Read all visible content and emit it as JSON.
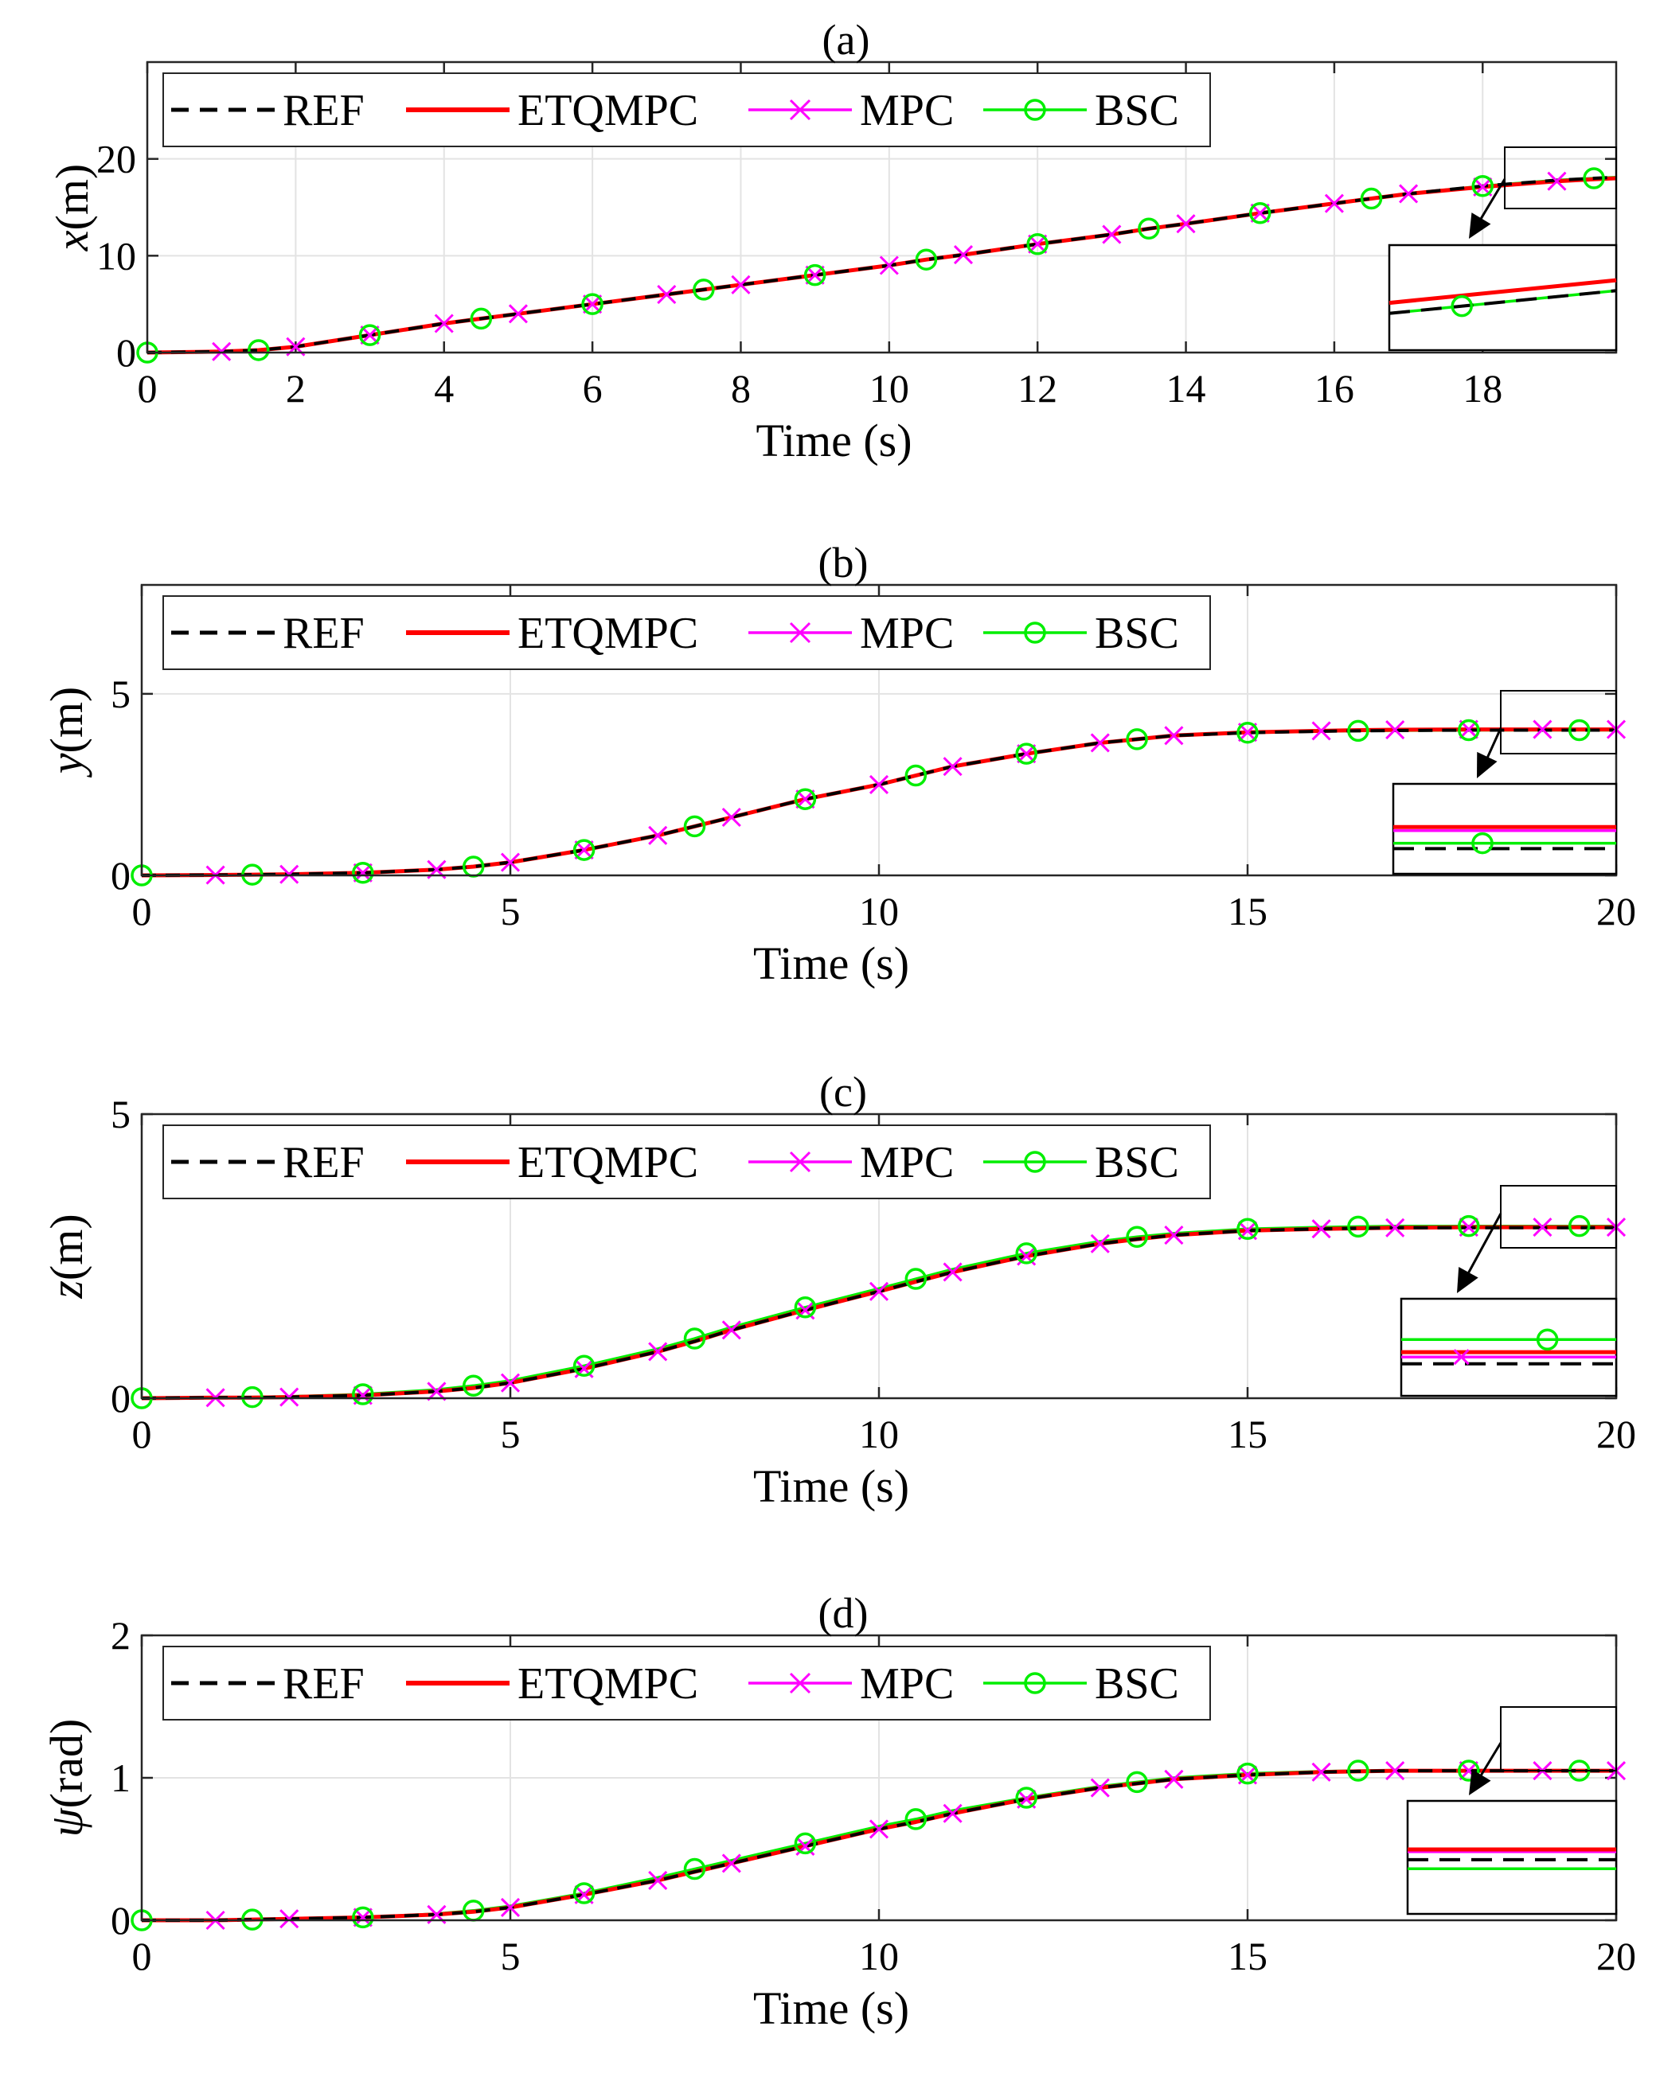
{
  "colors": {
    "REF": "#000000",
    "ETQMPC": "#ff0000",
    "MPC": "#ff00ff",
    "BSC": "#00ee00"
  },
  "legend": [
    "REF",
    "ETQMPC",
    "MPC",
    "BSC"
  ],
  "chart_data": [
    {
      "type": "line",
      "title": "(a)",
      "xlabel": "Time (s)",
      "ylabel_var": "x",
      "ylabel_unit": "(m)",
      "xlim": [
        0,
        19.8
      ],
      "ylim": [
        0,
        30
      ],
      "xticks": [
        0,
        2,
        4,
        6,
        8,
        10,
        12,
        14,
        16,
        18
      ],
      "yticks": [
        0,
        10,
        20
      ],
      "x": [
        0,
        1,
        1.5,
        2,
        3,
        4,
        4.5,
        5,
        6,
        7,
        7.5,
        8,
        9,
        10,
        10.5,
        11,
        12,
        13,
        13.5,
        14,
        15,
        16,
        16.5,
        17,
        18,
        19,
        19.5,
        19.8
      ],
      "series": [
        {
          "name": "REF",
          "values": [
            0,
            0.1,
            0.25,
            0.6,
            1.8,
            3.0,
            3.5,
            4.0,
            5.0,
            6.0,
            6.5,
            7.0,
            8.0,
            9.0,
            9.6,
            10.1,
            11.2,
            12.2,
            12.8,
            13.3,
            14.4,
            15.4,
            15.9,
            16.4,
            17.2,
            17.8,
            18.0,
            18.1
          ]
        },
        {
          "name": "ETQMPC",
          "values": [
            0,
            0.1,
            0.25,
            0.6,
            1.8,
            3.0,
            3.5,
            4.0,
            5.0,
            6.0,
            6.5,
            7.0,
            8.0,
            9.0,
            9.6,
            10.1,
            11.2,
            12.2,
            12.8,
            13.3,
            14.4,
            15.4,
            15.9,
            16.4,
            17.1,
            17.7,
            17.9,
            18.0
          ]
        },
        {
          "name": "MPC",
          "values": [
            0,
            0.1,
            0.25,
            0.6,
            1.8,
            3.0,
            3.5,
            4.0,
            5.0,
            6.0,
            6.5,
            7.0,
            8.0,
            9.0,
            9.6,
            10.1,
            11.2,
            12.2,
            12.8,
            13.3,
            14.4,
            15.4,
            15.9,
            16.4,
            17.1,
            17.7,
            17.9,
            18.0
          ]
        },
        {
          "name": "BSC",
          "values": [
            0,
            0.1,
            0.25,
            0.6,
            1.8,
            3.0,
            3.5,
            4.0,
            5.0,
            6.0,
            6.5,
            7.0,
            8.0,
            9.0,
            9.6,
            10.1,
            11.2,
            12.2,
            12.8,
            13.3,
            14.4,
            15.4,
            15.9,
            16.4,
            17.2,
            17.8,
            18.0,
            18.1
          ]
        }
      ],
      "mpc_markers": [
        1,
        2,
        3,
        4,
        5,
        6,
        7,
        8,
        9,
        10,
        11,
        12,
        13,
        14,
        15,
        16,
        17,
        18,
        19
      ],
      "bsc_markers": [
        0,
        1.5,
        3,
        4.5,
        6,
        7.5,
        9,
        10.5,
        12,
        13.5,
        15,
        16.5,
        18,
        19.5
      ],
      "inset": {
        "source_x": [
          18.4,
          19.8
        ],
        "source_y": [
          16,
          21
        ],
        "lines": {
          "REF": 0.35,
          "ETQMPC": 0.45,
          "MPC": 0.45,
          "BSC": 0.35
        },
        "marker": "BSC"
      }
    },
    {
      "type": "line",
      "title": "(b)",
      "xlabel": "Time (s)",
      "ylabel_var": "y",
      "ylabel_unit": "(m)",
      "xlim": [
        0,
        20
      ],
      "ylim": [
        0,
        8
      ],
      "xticks": [
        0,
        5,
        10,
        15,
        20
      ],
      "yticks": [
        0,
        5
      ],
      "x": [
        0,
        1,
        1.5,
        2,
        3,
        4,
        4.5,
        5,
        6,
        7,
        7.5,
        8,
        9,
        10,
        10.5,
        11,
        12,
        13,
        13.5,
        14,
        15,
        16,
        16.5,
        17,
        18,
        19,
        19.5,
        20
      ],
      "series": [
        {
          "name": "REF",
          "values": [
            0,
            0.01,
            0.02,
            0.03,
            0.07,
            0.16,
            0.24,
            0.36,
            0.7,
            1.1,
            1.35,
            1.6,
            2.1,
            2.5,
            2.75,
            3.0,
            3.35,
            3.65,
            3.75,
            3.85,
            3.93,
            3.97,
            3.98,
            3.99,
            4.0,
            4.0,
            4.0,
            4.0
          ]
        },
        {
          "name": "ETQMPC",
          "values": [
            0,
            0.01,
            0.02,
            0.03,
            0.07,
            0.16,
            0.24,
            0.36,
            0.7,
            1.1,
            1.35,
            1.6,
            2.1,
            2.5,
            2.75,
            3.0,
            3.35,
            3.65,
            3.75,
            3.85,
            3.94,
            3.98,
            4.0,
            4.01,
            4.02,
            4.02,
            4.02,
            4.02
          ]
        },
        {
          "name": "MPC",
          "values": [
            0,
            0.01,
            0.02,
            0.03,
            0.07,
            0.16,
            0.24,
            0.36,
            0.7,
            1.1,
            1.35,
            1.6,
            2.1,
            2.5,
            2.75,
            3.0,
            3.35,
            3.65,
            3.75,
            3.85,
            3.94,
            3.98,
            4.0,
            4.01,
            4.02,
            4.02,
            4.02,
            4.02
          ]
        },
        {
          "name": "BSC",
          "values": [
            0,
            0.01,
            0.02,
            0.03,
            0.07,
            0.16,
            0.24,
            0.36,
            0.7,
            1.1,
            1.35,
            1.6,
            2.1,
            2.5,
            2.75,
            3.0,
            3.35,
            3.65,
            3.75,
            3.85,
            3.93,
            3.97,
            3.98,
            3.99,
            4.0,
            4.0,
            4.0,
            4.0
          ]
        }
      ],
      "mpc_markers": [
        1,
        2,
        3,
        4,
        5,
        6,
        7,
        8,
        9,
        10,
        11,
        12,
        13,
        14,
        15,
        16,
        17,
        18,
        19,
        20
      ],
      "bsc_markers": [
        0,
        1.5,
        3,
        4.5,
        6,
        7.5,
        9,
        10.5,
        12,
        13.5,
        15,
        16.5,
        18,
        19.5
      ],
      "inset": {
        "source_x": [
          18.3,
          20
        ],
        "source_y": [
          3.4,
          4.8
        ],
        "lines": {
          "REF": 0.28,
          "ETQMPC": 0.52,
          "MPC": 0.48,
          "BSC": 0.34
        },
        "marker": "BSC"
      }
    },
    {
      "type": "line",
      "title": "(c)",
      "xlabel": "Time (s)",
      "ylabel_var": "z",
      "ylabel_unit": "(m)",
      "xlim": [
        0,
        20
      ],
      "ylim": [
        0,
        5
      ],
      "xticks": [
        0,
        5,
        10,
        15,
        20
      ],
      "yticks": [
        0,
        5
      ],
      "x": [
        0,
        1,
        1.5,
        2,
        3,
        4,
        4.5,
        5,
        6,
        7,
        7.5,
        8,
        9,
        10,
        10.5,
        11,
        12,
        13,
        13.5,
        14,
        15,
        16,
        16.5,
        17,
        18,
        19,
        19.5,
        20
      ],
      "series": [
        {
          "name": "REF",
          "values": [
            0,
            0.01,
            0.01,
            0.02,
            0.05,
            0.12,
            0.18,
            0.27,
            0.52,
            0.82,
            1.0,
            1.2,
            1.55,
            1.88,
            2.05,
            2.22,
            2.5,
            2.72,
            2.8,
            2.87,
            2.95,
            2.98,
            2.99,
            3.0,
            3.0,
            3.0,
            3.0,
            3.0
          ]
        },
        {
          "name": "ETQMPC",
          "values": [
            0,
            0.01,
            0.01,
            0.02,
            0.05,
            0.12,
            0.18,
            0.27,
            0.52,
            0.82,
            1.0,
            1.2,
            1.55,
            1.88,
            2.05,
            2.22,
            2.5,
            2.72,
            2.8,
            2.87,
            2.95,
            2.98,
            2.99,
            3.0,
            3.01,
            3.01,
            3.01,
            3.01
          ]
        },
        {
          "name": "MPC",
          "values": [
            0,
            0.01,
            0.01,
            0.02,
            0.05,
            0.12,
            0.18,
            0.27,
            0.52,
            0.82,
            1.0,
            1.2,
            1.55,
            1.88,
            2.05,
            2.22,
            2.5,
            2.72,
            2.8,
            2.87,
            2.95,
            2.98,
            2.99,
            3.0,
            3.01,
            3.01,
            3.01,
            3.01
          ]
        },
        {
          "name": "BSC",
          "values": [
            0,
            0.01,
            0.02,
            0.03,
            0.07,
            0.15,
            0.22,
            0.31,
            0.57,
            0.87,
            1.05,
            1.25,
            1.6,
            1.93,
            2.1,
            2.27,
            2.55,
            2.76,
            2.84,
            2.9,
            2.98,
            3.01,
            3.02,
            3.03,
            3.03,
            3.03,
            3.03,
            3.03
          ]
        }
      ],
      "mpc_markers": [
        1,
        2,
        3,
        4,
        5,
        6,
        7,
        8,
        9,
        10,
        11,
        12,
        13,
        14,
        15,
        16,
        17,
        18,
        19,
        20
      ],
      "bsc_markers": [
        0,
        1.5,
        3,
        4.5,
        6,
        7.5,
        9,
        10.5,
        12,
        13.5,
        15,
        16.5,
        18,
        19.5
      ],
      "inset": {
        "source_x": [
          18.3,
          20
        ],
        "source_y": [
          2.6,
          3.7
        ],
        "lines": {
          "REF": 0.33,
          "ETQMPC": 0.45,
          "MPC": 0.4,
          "BSC": 0.58
        },
        "marker": "BSC"
      }
    },
    {
      "type": "line",
      "title": "(d)",
      "xlabel": "Time (s)",
      "ylabel_var": "ψ",
      "ylabel_unit": "(rad)",
      "xlim": [
        0,
        20
      ],
      "ylim": [
        0,
        2
      ],
      "xticks": [
        0,
        5,
        10,
        15,
        20
      ],
      "yticks": [
        0,
        1,
        2
      ],
      "x": [
        0,
        1,
        1.5,
        2,
        3,
        4,
        4.5,
        5,
        6,
        7,
        7.5,
        8,
        9,
        10,
        10.5,
        11,
        12,
        13,
        13.5,
        14,
        15,
        16,
        16.5,
        17,
        18,
        19,
        19.5,
        20
      ],
      "series": [
        {
          "name": "REF",
          "values": [
            0,
            0.0,
            0.005,
            0.01,
            0.02,
            0.04,
            0.06,
            0.09,
            0.18,
            0.28,
            0.34,
            0.4,
            0.52,
            0.64,
            0.69,
            0.75,
            0.85,
            0.93,
            0.96,
            0.99,
            1.02,
            1.04,
            1.045,
            1.05,
            1.05,
            1.05,
            1.05,
            1.05
          ]
        },
        {
          "name": "ETQMPC",
          "values": [
            0,
            0.0,
            0.005,
            0.01,
            0.02,
            0.04,
            0.06,
            0.09,
            0.18,
            0.28,
            0.34,
            0.4,
            0.52,
            0.64,
            0.69,
            0.75,
            0.85,
            0.93,
            0.96,
            0.99,
            1.02,
            1.04,
            1.045,
            1.05,
            1.05,
            1.05,
            1.05,
            1.05
          ]
        },
        {
          "name": "MPC",
          "values": [
            0,
            0.0,
            0.005,
            0.01,
            0.02,
            0.04,
            0.06,
            0.09,
            0.18,
            0.28,
            0.34,
            0.4,
            0.52,
            0.64,
            0.69,
            0.75,
            0.85,
            0.93,
            0.96,
            0.99,
            1.02,
            1.04,
            1.045,
            1.05,
            1.05,
            1.05,
            1.05,
            1.05
          ]
        },
        {
          "name": "BSC",
          "values": [
            0,
            0.0,
            0.005,
            0.01,
            0.02,
            0.045,
            0.068,
            0.1,
            0.19,
            0.3,
            0.36,
            0.42,
            0.54,
            0.66,
            0.71,
            0.77,
            0.86,
            0.94,
            0.97,
            1.0,
            1.03,
            1.045,
            1.05,
            1.05,
            1.05,
            1.05,
            1.05,
            1.05
          ]
        }
      ],
      "mpc_markers": [
        1,
        2,
        3,
        4,
        5,
        6,
        7,
        8,
        9,
        10,
        11,
        12,
        13,
        14,
        15,
        16,
        17,
        18,
        19,
        20
      ],
      "bsc_markers": [
        0,
        1.5,
        3,
        4.5,
        6,
        7.5,
        9,
        10.5,
        12,
        13.5,
        15,
        16.5,
        18,
        19.5
      ],
      "inset": {
        "source_x": [
          18.3,
          20
        ],
        "source_y": [
          0.88,
          1.22
        ],
        "lines": {
          "REF": 0.48,
          "ETQMPC": 0.57,
          "MPC": 0.55,
          "BSC": 0.4
        },
        "marker": null
      }
    }
  ]
}
